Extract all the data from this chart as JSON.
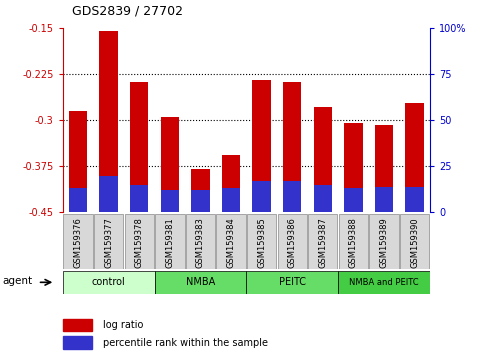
{
  "title": "GDS2839 / 27702",
  "categories": [
    "GSM159376",
    "GSM159377",
    "GSM159378",
    "GSM159381",
    "GSM159383",
    "GSM159384",
    "GSM159385",
    "GSM159386",
    "GSM159387",
    "GSM159388",
    "GSM159389",
    "GSM159390"
  ],
  "log_ratio": [
    -0.285,
    -0.155,
    -0.238,
    -0.295,
    -0.38,
    -0.357,
    -0.234,
    -0.237,
    -0.278,
    -0.305,
    -0.308,
    -0.272
  ],
  "percentile_rank_pct": [
    13,
    20,
    15,
    12,
    12,
    13,
    17,
    17,
    15,
    13,
    14,
    14
  ],
  "bar_bottom": -0.45,
  "ylim_left": [
    -0.45,
    -0.15
  ],
  "ylim_right": [
    0,
    100
  ],
  "yticks_left": [
    -0.45,
    -0.375,
    -0.3,
    -0.225,
    -0.15
  ],
  "ytick_labels_left": [
    "-0.45",
    "-0.375",
    "-0.3",
    "-0.225",
    "-0.15"
  ],
  "yticks_right": [
    0,
    25,
    50,
    75,
    100
  ],
  "ytick_labels_right": [
    "0",
    "25",
    "50",
    "75",
    "100%"
  ],
  "agent_groups": [
    {
      "label": "control",
      "start": 0,
      "end": 3,
      "color": "#ccffcc"
    },
    {
      "label": "NMBA",
      "start": 3,
      "end": 6,
      "color": "#66dd66"
    },
    {
      "label": "PEITC",
      "start": 6,
      "end": 9,
      "color": "#66dd66"
    },
    {
      "label": "NMBA and PEITC",
      "start": 9,
      "end": 12,
      "color": "#44cc44"
    }
  ],
  "bar_color_red": "#cc0000",
  "bar_color_blue": "#3333cc",
  "left_axis_color": "#cc0000",
  "right_axis_color": "#0000cc",
  "bg_color": "#ffffff",
  "legend_items": [
    "log ratio",
    "percentile rank within the sample"
  ],
  "legend_colors": [
    "#cc0000",
    "#3333cc"
  ],
  "agent_label": "agent"
}
